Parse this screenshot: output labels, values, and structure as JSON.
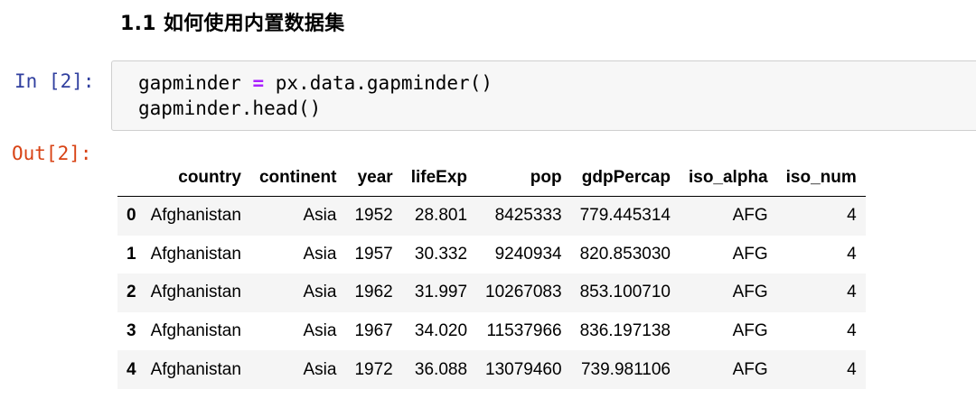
{
  "heading": "1.1 如何使用内置数据集",
  "input_prompt": "In [2]:",
  "output_prompt": "Out[2]:",
  "code": {
    "line1_var": "gapminder",
    "line1_op": "=",
    "line1_rest": "px.data.gapminder()",
    "line2": "gapminder.head()"
  },
  "table": {
    "columns": [
      "",
      "country",
      "continent",
      "year",
      "lifeExp",
      "pop",
      "gdpPercap",
      "iso_alpha",
      "iso_num"
    ],
    "rows": [
      [
        "0",
        "Afghanistan",
        "Asia",
        "1952",
        "28.801",
        "8425333",
        "779.445314",
        "AFG",
        "4"
      ],
      [
        "1",
        "Afghanistan",
        "Asia",
        "1957",
        "30.332",
        "9240934",
        "820.853030",
        "AFG",
        "4"
      ],
      [
        "2",
        "Afghanistan",
        "Asia",
        "1962",
        "31.997",
        "10267083",
        "853.100710",
        "AFG",
        "4"
      ],
      [
        "3",
        "Afghanistan",
        "Asia",
        "1967",
        "34.020",
        "11537966",
        "836.197138",
        "AFG",
        "4"
      ],
      [
        "4",
        "Afghanistan",
        "Asia",
        "1972",
        "36.088",
        "13079460",
        "739.981106",
        "AFG",
        "4"
      ]
    ]
  },
  "colors": {
    "input_prompt": "#303f9f",
    "output_prompt": "#d84315",
    "operator": "#aa22ff",
    "code_cell_bg": "#f7f7f7",
    "stripe": "#f5f5f5"
  }
}
